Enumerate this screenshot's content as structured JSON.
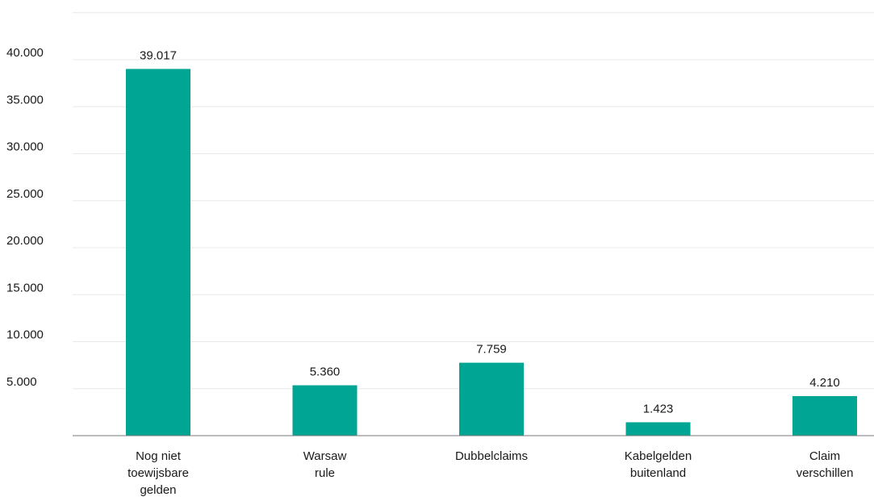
{
  "chart_data": {
    "type": "bar",
    "categories": [
      [
        "Nog niet",
        "toewijsbare",
        "gelden"
      ],
      [
        "Warsaw",
        "rule"
      ],
      [
        "Dubbelclaims"
      ],
      [
        "Kabelgelden",
        "buitenland"
      ],
      [
        "Claim",
        "verschillen"
      ]
    ],
    "values": [
      39017,
      5360,
      7759,
      1423,
      4210
    ],
    "data_labels": [
      "39.017",
      "5.360",
      "7.759",
      "1.423",
      "4.210"
    ],
    "y_ticks": [
      5000,
      10000,
      15000,
      20000,
      25000,
      30000,
      35000,
      40000
    ],
    "y_tick_labels": [
      "5.000",
      "10.000",
      "15.000",
      "20.000",
      "25.000",
      "30.000",
      "35.000",
      "40.000"
    ],
    "ylim": [
      0,
      45000
    ],
    "grid": true,
    "bar_color": "#00a693"
  }
}
